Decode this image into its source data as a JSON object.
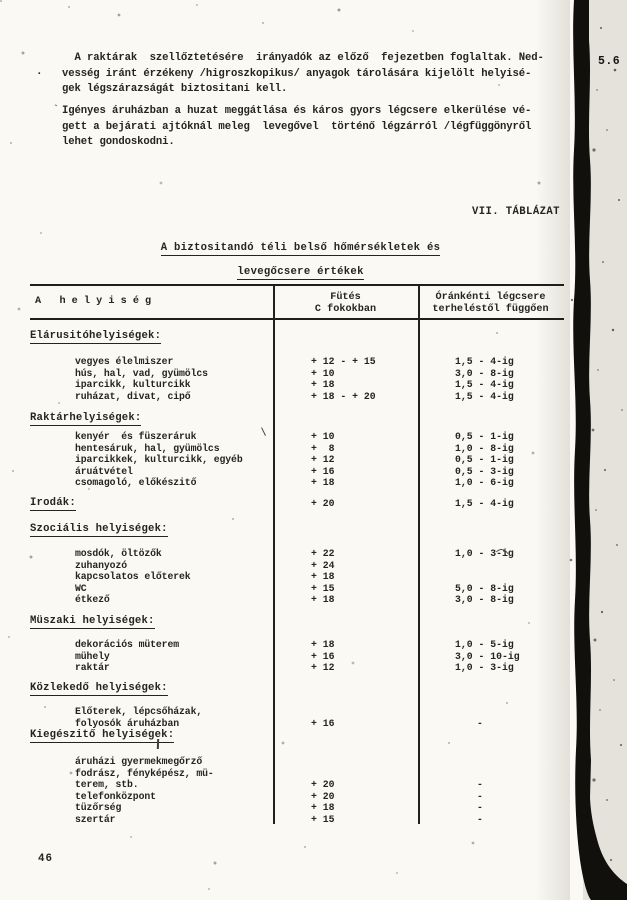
{
  "page": {
    "number": "46",
    "side_label": "5.6"
  },
  "paragraphs": [
    {
      "lines": [
        "  A raktárak  szellőztetésére  irányadók az előző  fejezetben foglaltak. Ned-",
        "vesség iránt érzékeny /higroszkopikus/ anyagok tárolására kijelölt helyisé-",
        "gek légszárazságát biztositani kell."
      ]
    },
    {
      "lines": [
        "Igényes áruházban a huzat meggátlása és káros gyors légcsere elkerülése vé-",
        "gett a bejárati ajtóknál meleg  levegővel  történő légzárról /légfüggönyről",
        "lehet gondoskodni."
      ]
    }
  ],
  "caption": "VII. TÁBLÁZAT",
  "marks": {
    "lead_dot": ".",
    "lead_tick": "`"
  },
  "table": {
    "title1": "A biztositandó téli belső hőmérsékletek és",
    "title2": "levegőcsere értékek",
    "headers": {
      "col1": "A   h e l y i s é g",
      "col2": [
        "Fütés",
        "C fokokban"
      ],
      "col3": [
        "Óránkénti légcsere",
        "terheléstől függően"
      ]
    },
    "sections": [
      {
        "header": "Elárusitóhelyiségek:",
        "rows": [
          {
            "label": "vegyes élelmiszer",
            "heat": "+ 12 - + 15",
            "air": "1,5 - 4-ig"
          },
          {
            "label": "hús, hal, vad, gyümölcs",
            "heat": "+ 10",
            "air": "3,0 - 8-ig"
          },
          {
            "label": "iparcikk, kulturcikk",
            "heat": "+ 18",
            "air": "1,5 - 4-ig"
          },
          {
            "label": "ruházat, divat, cipő",
            "heat": "+ 18 - + 20",
            "air": "1,5 - 4-ig"
          }
        ]
      },
      {
        "header": "Raktárhelyiségek:",
        "rows": [
          {
            "label": "kenyér  és füszeráruk",
            "heat": "+ 10",
            "air": "0,5 - 1-ig"
          },
          {
            "label": "hentesáruk, hal, gyümölcs",
            "heat": "+  8",
            "air": "1,0 - 8-ig"
          },
          {
            "label": "iparcikkek, kulturcikk, egyéb",
            "heat": "+ 12",
            "air": "0,5 - 1-ig"
          },
          {
            "label": "áruátvétel",
            "heat": "+ 16",
            "air": "0,5 - 3-ig"
          },
          {
            "label": "csomagoló, előkészitő",
            "heat": "+ 18",
            "air": "1,0 - 6-ig"
          }
        ]
      },
      {
        "header": "Irodák:",
        "heat": "+ 20",
        "air": "1,5 - 4-ig",
        "rows": []
      },
      {
        "header": "Szociális helyiségek:",
        "rows": [
          {
            "label": "mosdók, öltözők",
            "heat": "+ 22",
            "air": "1,0 - 3-ig"
          },
          {
            "label": "zuhanyozó",
            "heat": "+ 24",
            "air": ""
          },
          {
            "label": "kapcsolatos előterek",
            "heat": "+ 18",
            "air": ""
          },
          {
            "label": "WC",
            "heat": "+ 15",
            "air": "5,0 - 8-ig"
          },
          {
            "label": "étkező",
            "heat": "+ 18",
            "air": "3,0 - 8-ig"
          }
        ]
      },
      {
        "header": "Müszaki helyiségek:",
        "rows": [
          {
            "label": "dekorációs müterem",
            "heat": "+ 18",
            "air": "1,0 - 5-ig"
          },
          {
            "label": "mühely",
            "heat": "+ 16",
            "air": "3,0 - 10-ig"
          },
          {
            "label": "raktár",
            "heat": "+ 12",
            "air": "1,0 - 3-ig"
          }
        ]
      },
      {
        "header": "Közlekedő helyiségek:",
        "rows": [
          {
            "label": "Előterek, lépcsőházak,",
            "heat": "",
            "air": ""
          },
          {
            "label": "folyosók áruházban",
            "heat": "+ 16",
            "air": "-"
          }
        ]
      },
      {
        "header": "Kiegészitő helyiségek:",
        "rows": [
          {
            "label": "áruházi gyermekmegőrző",
            "heat": "",
            "air": ""
          },
          {
            "label": "fodrász, fényképész, mü-",
            "heat": "",
            "air": ""
          },
          {
            "label": "terem, stb.",
            "heat": "+ 20",
            "air": "-"
          },
          {
            "label": "telefonközpont",
            "heat": "+ 20",
            "air": "-"
          },
          {
            "label": "tüzőrség",
            "heat": "+ 18",
            "air": "-"
          },
          {
            "label": "szertár",
            "heat": "+ 15",
            "air": "-"
          }
        ]
      }
    ]
  }
}
